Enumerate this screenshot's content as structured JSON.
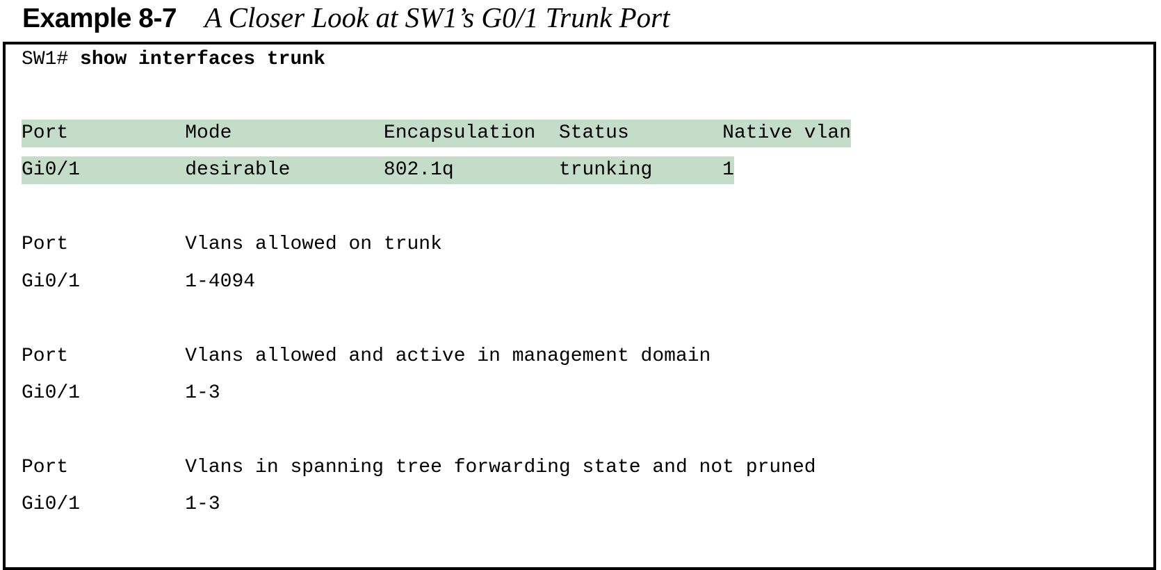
{
  "heading": {
    "label": "Example 8-7",
    "title": "A Closer Look at SW1’s G0/1 Trunk Port"
  },
  "output": {
    "prompt": "SW1#",
    "command": "show interfaces trunk",
    "lines": [
      {
        "text": "Port          Mode             Encapsulation  Status        Native vlan",
        "highlighted": true
      },
      {
        "text": "Gi0/1         desirable        802.1q         trunking      1",
        "highlighted": true
      },
      {
        "text": "Port          Vlans allowed on trunk",
        "highlighted": false
      },
      {
        "text": "Gi0/1         1-4094",
        "highlighted": false
      },
      {
        "text": "Port          Vlans allowed and active in management domain",
        "highlighted": false
      },
      {
        "text": "Gi0/1         1-3",
        "highlighted": false
      },
      {
        "text": "Port          Vlans in spanning tree forwarding state and not pruned",
        "highlighted": false
      },
      {
        "text": "Gi0/1         1-3",
        "highlighted": false
      }
    ]
  }
}
